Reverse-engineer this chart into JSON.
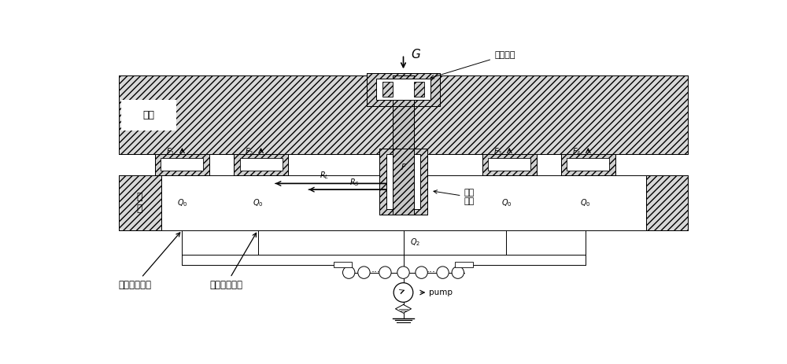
{
  "bg_color": "#ffffff",
  "lc": "#000000",
  "fig_w": 10.0,
  "fig_h": 4.63,
  "labels": {
    "turntable": "转台",
    "base_line1": "基",
    "base_line2": "座",
    "preload_pad": "预压油垫",
    "radial_bearing_1": "径向",
    "radial_bearing_2": "轴承",
    "outer_pad": "外圈支承油垫",
    "inner_pad": "内圈支承油垫",
    "pump": "pump",
    "G": "G"
  },
  "coord": {
    "xlim": [
      0,
      100
    ],
    "ylim": [
      0,
      46.3
    ]
  }
}
